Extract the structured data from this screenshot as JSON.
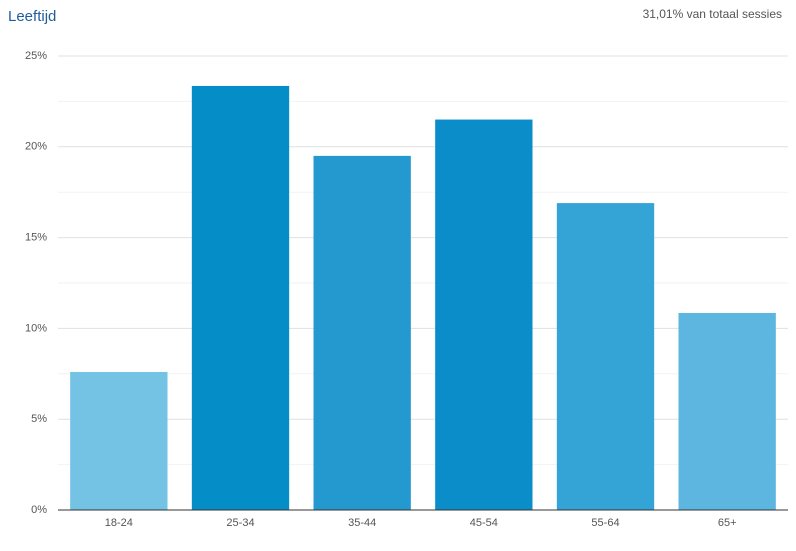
{
  "chart_data": {
    "type": "bar",
    "title": "Leeftijd",
    "subtitle": "31,01% van totaal sessies",
    "categories": [
      "18-24",
      "25-34",
      "35-44",
      "45-54",
      "55-64",
      "65+"
    ],
    "values": [
      7.6,
      23.35,
      19.5,
      21.5,
      16.9,
      10.85
    ],
    "colors": [
      "#74c3e4",
      "#058dc7",
      "#2399d0",
      "#0b8dc9",
      "#34a3d6",
      "#5db6df"
    ],
    "ylim": [
      0,
      25
    ],
    "yticks": [
      {
        "value": 0,
        "label": "0%"
      },
      {
        "value": 5,
        "label": "5%"
      },
      {
        "value": 10,
        "label": "10%"
      },
      {
        "value": 15,
        "label": "15%"
      },
      {
        "value": 20,
        "label": "20%"
      },
      {
        "value": 25,
        "label": "25%"
      }
    ],
    "minor_yticks": [
      2.5,
      7.5,
      12.5,
      17.5,
      22.5
    ],
    "grid": true
  }
}
